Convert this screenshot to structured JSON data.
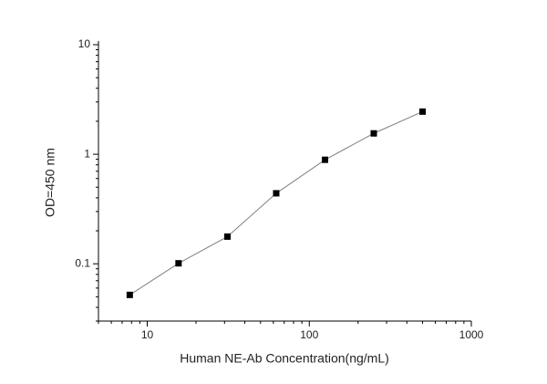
{
  "chart_data": {
    "type": "line",
    "x_label": "Human NE-Ab Concentration(ng/mL)",
    "y_label": "OD=450 nm",
    "x": [
      7.8,
      15.6,
      31.25,
      62.5,
      125,
      250,
      500
    ],
    "values": [
      0.052,
      0.101,
      0.177,
      0.44,
      0.89,
      1.55,
      2.45
    ],
    "color": "#000000",
    "line_color": "#808080",
    "xlim": [
      5,
      1000
    ],
    "xticks": [
      10,
      100,
      1000
    ],
    "ylim": [
      0.03,
      10
    ],
    "yticks": [
      0.1,
      1,
      10
    ],
    "x_log": true,
    "y_log": true
  }
}
